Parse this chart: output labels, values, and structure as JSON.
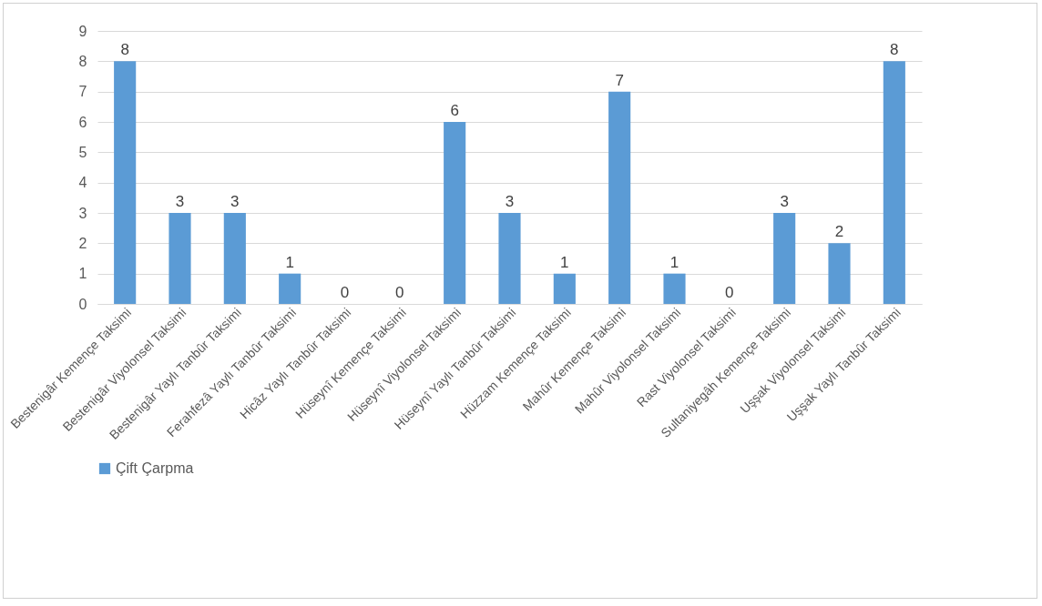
{
  "chart_data": {
    "type": "bar",
    "categories": [
      "Bestenigâr Kemençe Taksimi",
      "Bestenigâr Viyolonsel Taksimi",
      "Bestenigâr Yaylı Tanbûr Taksimi",
      "Ferahfezâ Yaylı Tanbûr Taksimi",
      "Hicâz Yaylı Tanbûr Taksimi",
      "Hüseynî Kemençe Taksimi",
      "Hüseynî Viyolonsel Taksimi",
      "Hüseynî Yaylı Tanbûr Taksimi",
      "Hüzzam Kemençe Taksimi",
      "Mahûr Kemençe Taksimi",
      "Mahûr Viyolonsel Taksimi",
      "Rast Viyolonsel Taksimi",
      "Sultaniyegâh Kemençe Taksimi",
      "Uşşak Viyolonsel Taksimi",
      "Uşşak Yaylı Tanbûr Taksimi"
    ],
    "series": [
      {
        "name": "Çift Çarpma",
        "color": "#5b9bd5",
        "values": [
          8,
          3,
          3,
          1,
          0,
          0,
          6,
          3,
          1,
          7,
          1,
          0,
          3,
          2,
          8
        ]
      }
    ],
    "ylim": [
      0,
      9
    ],
    "yticks": [
      0,
      1,
      2,
      3,
      4,
      5,
      6,
      7,
      8,
      9
    ],
    "grid": "y",
    "legend": "bottom",
    "data_labels": true
  }
}
